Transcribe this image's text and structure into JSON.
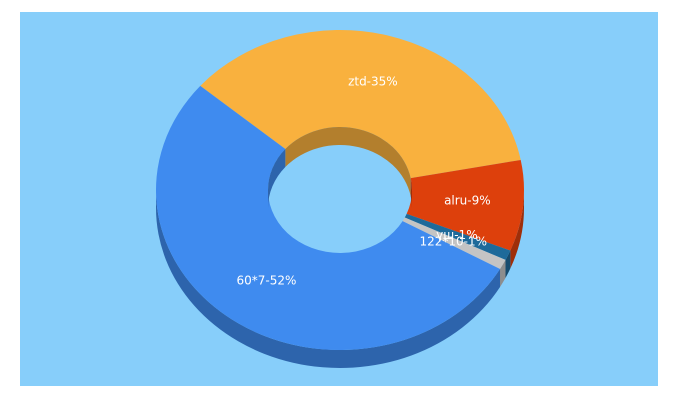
{
  "chart_data": {
    "type": "pie",
    "values": [
      35,
      9,
      1,
      1,
      52
    ],
    "value_labels": [
      "ztd-35%",
      "alru-9%",
      "үш-1%",
      "122*10-1%",
      "60*7-52%"
    ],
    "colors": [
      "#f9b13e",
      "#dd400c",
      "#1e6a9a",
      "#c4c4c4",
      "#3f8bef"
    ],
    "background": "#87cefa"
  }
}
